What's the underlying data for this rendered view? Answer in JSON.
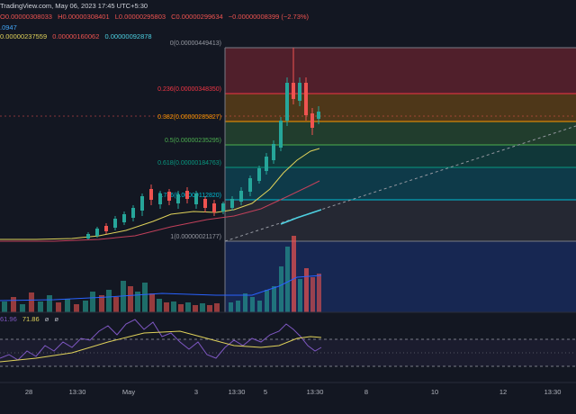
{
  "header": {
    "source": "TradingView.com, May 06, 2023 17:45 UTC+5:30",
    "ohlc": {
      "open": "O0.00000308033",
      "high": "H0.00000308401",
      "low": "L0.00000295803",
      "close": "C0.00000299634",
      "change": "−0.00000008399 (−2.73%)"
    },
    "line2": ".0947",
    "line3_a": "0.00000237559",
    "line3_b": "0.00000160062",
    "line3_c": "0.00000092878"
  },
  "rsi": {
    "value_a": "61.96",
    "value_b": "71.86",
    "icons": [
      "eye-off-icon",
      "settings-icon"
    ],
    "icon_glyphs": [
      "ø",
      "ø"
    ]
  },
  "time_axis": {
    "labels": [
      "28",
      "13:30",
      "May",
      "3",
      "13:30",
      "5",
      "13:30",
      "8",
      "10",
      "12",
      "13:30"
    ]
  },
  "fib_levels": [
    {
      "ratio": "0",
      "label": "0(0.00000449413)",
      "color": "#787b86"
    },
    {
      "ratio": "0.236",
      "label": "0.236(0.00000348350)",
      "color": "#f23645"
    },
    {
      "ratio": "0.382",
      "label": "0.382(0.00000285827)",
      "color": "#ff9800"
    },
    {
      "ratio": "0.5",
      "label": "0.5(0.00000235295)",
      "color": "#4caf50"
    },
    {
      "ratio": "0.618",
      "label": "0.618(0.00000184763)",
      "color": "#089981"
    },
    {
      "ratio": "0.786",
      "label": "0.786(0.00000112820)",
      "color": "#00bcd4"
    },
    {
      "ratio": "1",
      "label": "1(0.00000021177)",
      "color": "#787b86"
    }
  ],
  "colors": {
    "background": "#131722",
    "bull": "#26a69a",
    "bear": "#ef5350",
    "ma_fast": "#e0d25a",
    "ma_mid": "#c2405a",
    "ma_slow": "#4dd0e1",
    "rsi": "#7e57c2",
    "rsi_ma": "#e0d25a",
    "volume_bull": "#26a69a",
    "volume_bear": "#ef5350"
  }
}
